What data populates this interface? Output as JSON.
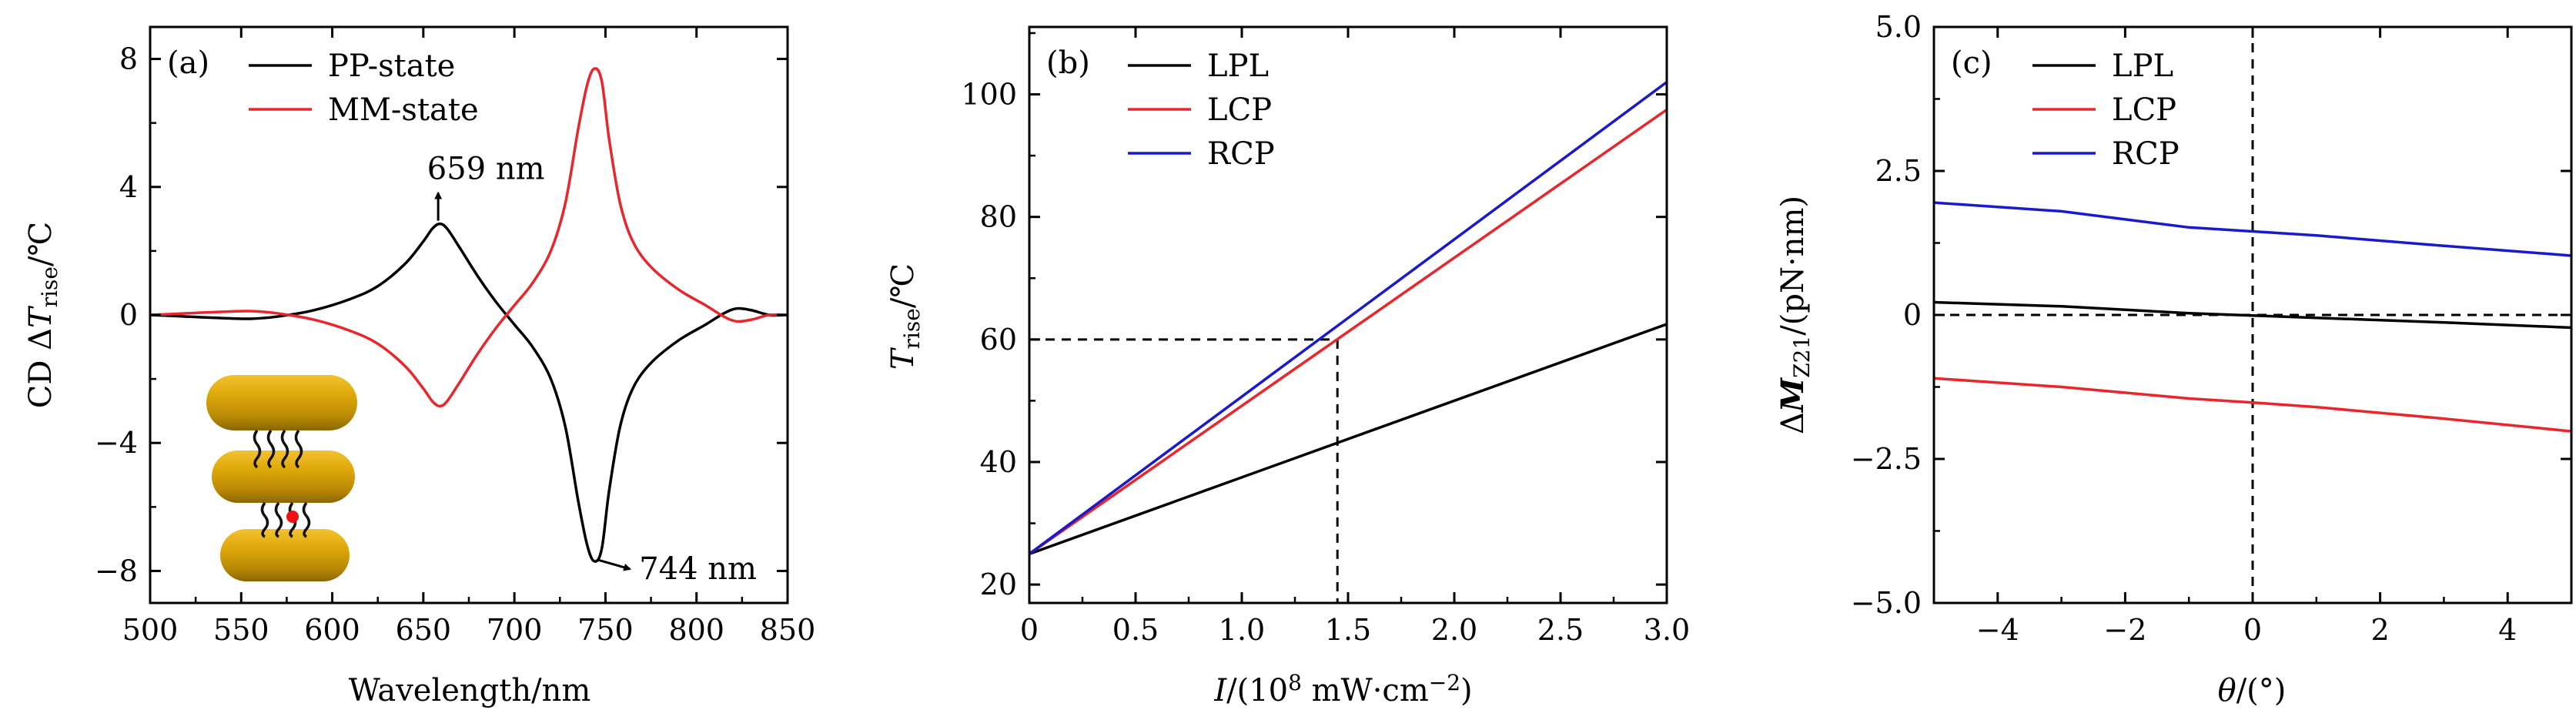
{
  "chart_data": [
    {
      "type": "line",
      "panel_label": "(a)",
      "xlabel": "Wavelength/nm",
      "ylabel_parts": [
        "CD ",
        "Δ",
        "T",
        "rise",
        "/℃"
      ],
      "xlim": [
        500,
        850
      ],
      "ylim": [
        -9,
        9
      ],
      "xticks": [
        500,
        550,
        600,
        650,
        700,
        750,
        800,
        850
      ],
      "xtick_labels": [
        "500",
        "550",
        "600",
        "650",
        "700",
        "750",
        "800",
        "850"
      ],
      "yticks": [
        8,
        4,
        0,
        -4,
        -8
      ],
      "ytick_labels": [
        "8",
        "4",
        "0",
        "−4",
        "−8"
      ],
      "legend_position": "top-left",
      "series": [
        {
          "name": "PP-state",
          "color": "#000000",
          "x": [
            500,
            520,
            540,
            555,
            570,
            590,
            610,
            625,
            640,
            650,
            655,
            659,
            663,
            670,
            680,
            690,
            700,
            710,
            720,
            728,
            735,
            740,
            744,
            748,
            752,
            758,
            765,
            775,
            790,
            805,
            815,
            822,
            830,
            840,
            850
          ],
          "y": [
            0,
            -0.05,
            -0.1,
            -0.12,
            -0.05,
            0.15,
            0.5,
            0.9,
            1.6,
            2.3,
            2.7,
            2.85,
            2.7,
            2.1,
            1.2,
            0.4,
            -0.3,
            -1.0,
            -2.0,
            -3.5,
            -5.8,
            -7.2,
            -7.7,
            -7.3,
            -5.5,
            -3.5,
            -2.3,
            -1.5,
            -0.8,
            -0.3,
            0.05,
            0.2,
            0.15,
            0.0,
            0.0
          ]
        },
        {
          "name": "MM-state",
          "color": "#e8262b",
          "x": [
            500,
            520,
            540,
            555,
            570,
            590,
            610,
            625,
            640,
            650,
            655,
            659,
            663,
            670,
            680,
            690,
            700,
            710,
            720,
            728,
            735,
            740,
            744,
            748,
            752,
            758,
            765,
            775,
            790,
            805,
            815,
            822,
            830,
            840,
            850
          ],
          "y": [
            0,
            0.05,
            0.1,
            0.12,
            0.05,
            -0.15,
            -0.5,
            -0.9,
            -1.6,
            -2.3,
            -2.7,
            -2.85,
            -2.7,
            -2.1,
            -1.2,
            -0.4,
            0.3,
            1.0,
            2.0,
            3.5,
            5.8,
            7.2,
            7.7,
            7.3,
            5.5,
            3.5,
            2.3,
            1.5,
            0.8,
            0.3,
            -0.05,
            -0.2,
            -0.15,
            0.0,
            0.0
          ]
        }
      ],
      "annotations": [
        {
          "text": "659 nm",
          "x": 659,
          "y": 2.85
        },
        {
          "text": "744 nm",
          "x": 744,
          "y": -7.7
        }
      ]
    },
    {
      "type": "line",
      "panel_label": "(b)",
      "xlabel_parts": [
        "I",
        "/(10",
        "8",
        " mW·cm",
        "−2",
        ")"
      ],
      "ylabel_parts": [
        "T",
        "rise",
        "/℃"
      ],
      "xlim": [
        0,
        3
      ],
      "ylim": [
        17,
        111
      ],
      "xticks": [
        0,
        0.5,
        1.0,
        1.5,
        2.0,
        2.5,
        3.0
      ],
      "xtick_labels": [
        "0",
        "0.5",
        "1.0",
        "1.5",
        "2.0",
        "2.5",
        "3.0"
      ],
      "yticks": [
        20,
        40,
        60,
        80,
        100
      ],
      "ytick_labels": [
        "20",
        "40",
        "60",
        "80",
        "100"
      ],
      "legend_position": "top-left",
      "series": [
        {
          "name": "LPL",
          "color": "#000000",
          "x": [
            0,
            3.0
          ],
          "y": [
            25,
            62.5
          ]
        },
        {
          "name": "LCP",
          "color": "#e8262b",
          "x": [
            0,
            3.0
          ],
          "y": [
            25,
            97.5
          ]
        },
        {
          "name": "RCP",
          "color": "#1a1acc",
          "x": [
            0,
            3.0
          ],
          "y": [
            25,
            102
          ]
        }
      ],
      "reference_lines": {
        "y": 60,
        "x": 1.45
      }
    },
    {
      "type": "line",
      "panel_label": "(c)",
      "xlabel_parts": [
        "θ",
        "/(°)"
      ],
      "ylabel_parts": [
        "Δ",
        "M",
        "Z21",
        "/(pN·nm)"
      ],
      "xlim": [
        -5,
        5
      ],
      "ylim": [
        -5,
        5
      ],
      "xticks": [
        -4,
        -2,
        0,
        2,
        4
      ],
      "xtick_labels": [
        "−4",
        "−2",
        "0",
        "2",
        "4"
      ],
      "yticks": [
        5,
        2.5,
        0,
        -2.5,
        -5
      ],
      "ytick_labels": [
        "5.0",
        "2.5",
        "0",
        "−2.5",
        "−5.0"
      ],
      "legend_position": "top-left",
      "series": [
        {
          "name": "LPL",
          "color": "#000000",
          "x": [
            -5,
            -3,
            -1,
            0,
            1,
            3,
            5
          ],
          "y": [
            0.22,
            0.15,
            0.03,
            -0.01,
            -0.05,
            -0.13,
            -0.22
          ]
        },
        {
          "name": "LCP",
          "color": "#e8262b",
          "x": [
            -5,
            -3,
            -1,
            0,
            1,
            3,
            5
          ],
          "y": [
            -1.1,
            -1.25,
            -1.45,
            -1.52,
            -1.6,
            -1.8,
            -2.02
          ]
        },
        {
          "name": "RCP",
          "color": "#1a1acc",
          "x": [
            -5,
            -3,
            -1,
            0,
            1,
            3,
            5
          ],
          "y": [
            1.95,
            1.8,
            1.52,
            1.45,
            1.38,
            1.2,
            1.03
          ]
        }
      ],
      "reference_lines": {
        "y": 0,
        "x": 0
      }
    }
  ]
}
